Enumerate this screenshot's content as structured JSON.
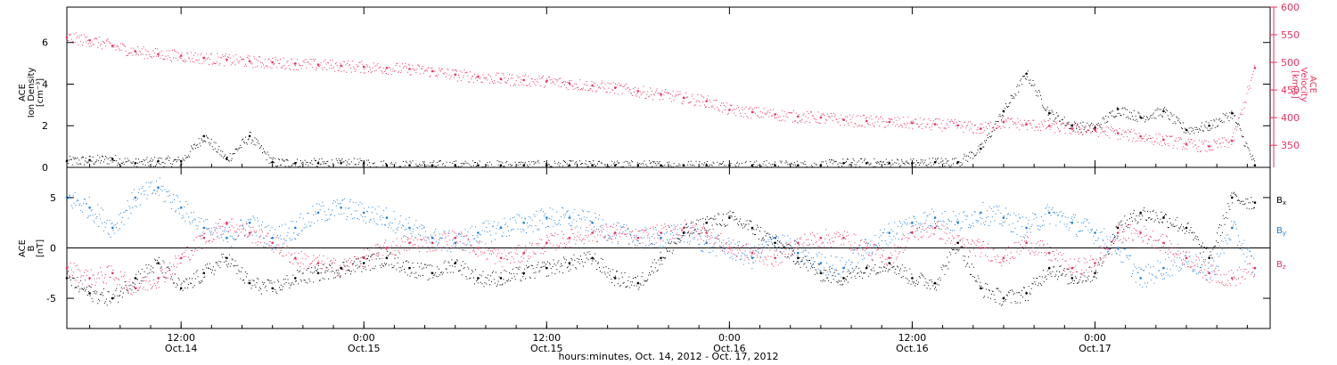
{
  "colors": {
    "black": "#000000",
    "pink": "#e8325f",
    "blue": "#1b7fd6",
    "axis": "#000000"
  },
  "chart_data": [
    {
      "type": "scatter",
      "panel": "top",
      "left_label_lines": [
        "ACE",
        "Ion Density",
        "[cm⁻³]"
      ],
      "right_label_lines": [
        "ACE",
        "Velocity",
        "[km/s]"
      ],
      "y_left_ticks": [
        "0",
        "2",
        "4",
        "6"
      ],
      "y_right_ticks": [
        "350",
        "400",
        "450",
        "500",
        "550",
        "600"
      ],
      "ylim_left": [
        0,
        7.7
      ],
      "ylim_right": [
        310,
        600
      ],
      "series": [
        {
          "name": "Ion Density",
          "color": "black",
          "axis": "left",
          "x": [
            0.0,
            1.5,
            3.0,
            4.5,
            6.0,
            7.5,
            9.0,
            10.5,
            12.0,
            13.5,
            15.0,
            16.5,
            18.0,
            19.5,
            21.0,
            22.5,
            24.0,
            25.5,
            27.0,
            28.5,
            30.0,
            31.5,
            33.0,
            34.5,
            36.0,
            37.5,
            39.0,
            40.5,
            42.0,
            43.5,
            45.0,
            46.5,
            48.0,
            49.5,
            51.0,
            52.5,
            54.0,
            55.5,
            57.0,
            58.5,
            60.0,
            61.5,
            63.0,
            64.5,
            66.0,
            67.5,
            69.0,
            70.5,
            72.0,
            73.5,
            75.0,
            76.5,
            78.0
          ],
          "y": [
            0.3,
            0.35,
            0.4,
            0.2,
            0.3,
            0.3,
            1.5,
            0.4,
            1.5,
            0.25,
            0.2,
            0.2,
            0.2,
            0.2,
            0.1,
            0.1,
            0.1,
            0.1,
            0.1,
            0.1,
            0.1,
            0.1,
            0.1,
            0.1,
            0.1,
            0.1,
            0.1,
            0.1,
            0.1,
            0.1,
            0.1,
            0.1,
            0.1,
            0.1,
            0.2,
            0.2,
            0.2,
            0.2,
            0.25,
            0.25,
            0.9,
            2.7,
            4.5,
            2.6,
            2.0,
            1.9,
            2.8,
            2.4,
            2.7,
            1.8,
            2.0,
            2.6,
            0.1
          ]
        },
        {
          "name": "Velocity",
          "color": "pink",
          "axis": "right",
          "x": [
            0.0,
            1.5,
            3.0,
            4.5,
            6.0,
            7.5,
            9.0,
            10.5,
            12.0,
            13.5,
            15.0,
            16.5,
            18.0,
            19.5,
            21.0,
            22.5,
            24.0,
            25.5,
            27.0,
            28.5,
            30.0,
            31.5,
            33.0,
            34.5,
            36.0,
            37.5,
            39.0,
            40.5,
            42.0,
            43.5,
            45.0,
            46.5,
            48.0,
            49.5,
            51.0,
            52.5,
            54.0,
            55.5,
            57.0,
            58.5,
            60.0,
            61.5,
            63.0,
            64.5,
            66.0,
            67.5,
            69.0,
            70.5,
            72.0,
            73.5,
            75.0,
            76.5,
            78.0
          ],
          "y": [
            545,
            540,
            530,
            520,
            515,
            512,
            508,
            505,
            502,
            500,
            498,
            496,
            494,
            492,
            490,
            488,
            484,
            478,
            474,
            470,
            468,
            466,
            462,
            458,
            454,
            448,
            442,
            436,
            430,
            414,
            410,
            406,
            402,
            400,
            396,
            394,
            392,
            390,
            388,
            386,
            380,
            392,
            388,
            385,
            380,
            378,
            372,
            366,
            360,
            352,
            348,
            358,
            490
          ]
        }
      ]
    },
    {
      "type": "scatter",
      "panel": "bottom",
      "left_label_lines": [
        "ACE",
        "B",
        "[nT]"
      ],
      "y_left_ticks": [
        "-5",
        "0",
        "5"
      ],
      "ylim_left": [
        -8,
        8
      ],
      "legend": [
        "Bx",
        "By",
        "Bz"
      ],
      "series": [
        {
          "name": "Bx",
          "color": "black",
          "x": [
            0.0,
            1.5,
            3.0,
            4.5,
            6.0,
            7.5,
            9.0,
            10.5,
            12.0,
            13.5,
            15.0,
            16.5,
            18.0,
            19.5,
            21.0,
            22.5,
            24.0,
            25.5,
            27.0,
            28.5,
            30.0,
            31.5,
            33.0,
            34.5,
            36.0,
            37.5,
            39.0,
            40.5,
            42.0,
            43.5,
            45.0,
            46.5,
            48.0,
            49.5,
            51.0,
            52.5,
            54.0,
            55.5,
            57.0,
            58.5,
            60.0,
            61.5,
            63.0,
            64.5,
            66.0,
            67.5,
            69.0,
            70.5,
            72.0,
            73.5,
            75.0,
            76.5,
            78.0
          ],
          "y": [
            -3.0,
            -4.5,
            -5.0,
            -3.0,
            -1.5,
            -4.0,
            -2.5,
            -1.0,
            -3.5,
            -4.0,
            -3.0,
            -2.5,
            -2.0,
            -1.5,
            -1.0,
            -2.0,
            -2.5,
            -1.5,
            -3.0,
            -3.0,
            -2.5,
            -2.0,
            -1.5,
            -1.0,
            -3.0,
            -3.5,
            -1.0,
            1.5,
            2.5,
            3.0,
            2.0,
            0.5,
            -1.0,
            -2.5,
            -3.0,
            -2.0,
            -1.5,
            -3.0,
            -3.5,
            0.5,
            -4.0,
            -5.0,
            -4.5,
            -2.0,
            -3.0,
            -2.5,
            2.0,
            3.5,
            3.0,
            2.0,
            -1.0,
            5.0,
            4.5
          ]
        },
        {
          "name": "By",
          "color": "blue",
          "x": [
            0.0,
            1.5,
            3.0,
            4.5,
            6.0,
            7.5,
            9.0,
            10.5,
            12.0,
            13.5,
            15.0,
            16.5,
            18.0,
            19.5,
            21.0,
            22.5,
            24.0,
            25.5,
            27.0,
            28.5,
            30.0,
            31.5,
            33.0,
            34.5,
            36.0,
            37.5,
            39.0,
            40.5,
            42.0,
            43.5,
            45.0,
            46.5,
            48.0,
            49.5,
            51.0,
            52.5,
            54.0,
            55.5,
            57.0,
            58.5,
            60.0,
            61.5,
            63.0,
            64.5,
            66.0,
            67.5,
            69.0,
            70.5,
            72.0,
            73.5,
            75.0,
            76.5,
            78.0
          ],
          "y": [
            5.0,
            4.0,
            2.0,
            5.0,
            6.0,
            4.0,
            2.0,
            1.0,
            2.5,
            1.0,
            2.0,
            3.5,
            4.0,
            3.5,
            3.0,
            2.0,
            1.0,
            0.5,
            1.5,
            2.0,
            2.5,
            3.0,
            3.0,
            2.5,
            1.5,
            1.0,
            1.0,
            1.5,
            0.5,
            0.0,
            -1.0,
            1.0,
            -0.5,
            -1.5,
            -2.0,
            0.0,
            1.5,
            2.5,
            3.0,
            2.5,
            3.5,
            3.0,
            2.0,
            3.5,
            2.5,
            1.5,
            0.0,
            -3.0,
            -2.0,
            -1.0,
            -2.5,
            2.0,
            -2.0
          ]
        },
        {
          "name": "Bz",
          "color": "pink",
          "x": [
            0.0,
            1.5,
            3.0,
            4.5,
            6.0,
            7.5,
            9.0,
            10.5,
            12.0,
            13.5,
            15.0,
            16.5,
            18.0,
            19.5,
            21.0,
            22.5,
            24.0,
            25.5,
            27.0,
            28.5,
            30.0,
            31.5,
            33.0,
            34.5,
            36.0,
            37.5,
            39.0,
            40.5,
            42.0,
            43.5,
            45.0,
            46.5,
            48.0,
            49.5,
            51.0,
            52.5,
            54.0,
            55.5,
            57.0,
            58.5,
            60.0,
            61.5,
            63.0,
            64.5,
            66.0,
            67.5,
            69.0,
            70.5,
            72.0,
            73.5,
            75.0,
            76.5,
            78.0
          ],
          "y": [
            -2.0,
            -3.0,
            -2.5,
            -4.0,
            -3.0,
            -1.0,
            1.0,
            2.5,
            1.5,
            0.5,
            -1.0,
            -1.5,
            -2.0,
            -1.0,
            0.0,
            0.5,
            0.5,
            1.0,
            0.0,
            -1.0,
            -0.5,
            0.5,
            1.0,
            1.5,
            1.5,
            1.0,
            1.5,
            2.0,
            1.5,
            0.0,
            -0.5,
            -1.0,
            0.5,
            1.0,
            1.0,
            0.0,
            -1.0,
            1.5,
            2.0,
            0.5,
            0.0,
            -1.0,
            0.5,
            -0.5,
            -2.0,
            -1.5,
            1.5,
            1.5,
            0.5,
            -1.0,
            -2.5,
            -3.0,
            -2.0
          ]
        }
      ]
    }
  ],
  "x_axis": {
    "xlim": [
      0,
      79
    ],
    "title": "hours:minutes, Oct. 14, 2012 - Oct. 17, 2012",
    "ticks": [
      {
        "x": 7.5,
        "time": "12:00",
        "date": "Oct.14"
      },
      {
        "x": 19.5,
        "time": "0:00",
        "date": "Oct.15"
      },
      {
        "x": 31.5,
        "time": "12:00",
        "date": "Oct.15"
      },
      {
        "x": 43.5,
        "time": "0:00",
        "date": "Oct.16"
      },
      {
        "x": 55.5,
        "time": "12:00",
        "date": "Oct.16"
      },
      {
        "x": 67.5,
        "time": "0:00",
        "date": "Oct.17"
      }
    ]
  }
}
